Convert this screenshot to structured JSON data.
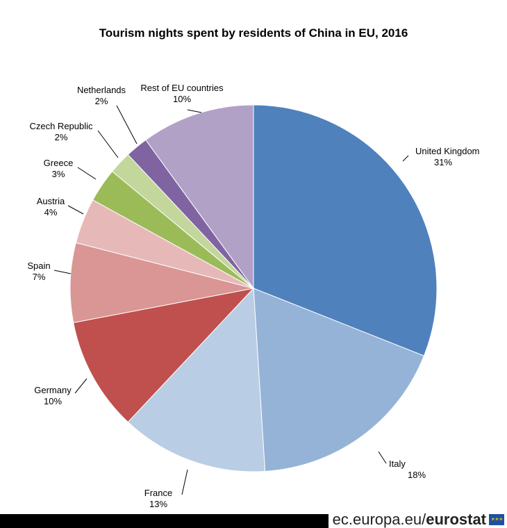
{
  "chart_data": {
    "type": "pie",
    "title": "Tourism nights spent by residents of China in EU, 2016",
    "slices": [
      {
        "label": "United Kingdom",
        "value": 31,
        "value_label": "31%",
        "color": "#4f81bd"
      },
      {
        "label": "Italy",
        "value": 18,
        "value_label": "18%",
        "color": "#95b3d7"
      },
      {
        "label": "France",
        "value": 13,
        "value_label": "13%",
        "color": "#b9cde5"
      },
      {
        "label": "Germany",
        "value": 10,
        "value_label": "10%",
        "color": "#c0504d"
      },
      {
        "label": "Spain",
        "value": 7,
        "value_label": "7%",
        "color": "#d99694"
      },
      {
        "label": "Austria",
        "value": 4,
        "value_label": "4%",
        "color": "#e6b9b8"
      },
      {
        "label": "Greece",
        "value": 3,
        "value_label": "3%",
        "color": "#9bbb59"
      },
      {
        "label": "Czech Republic",
        "value": 2,
        "value_label": "2%",
        "color": "#c3d69b"
      },
      {
        "label": "Netherlands",
        "value": 2,
        "value_label": "2%",
        "color": "#8064a2"
      },
      {
        "label": "Rest of EU countries",
        "value": 10,
        "value_label": "10%",
        "color": "#b2a1c7"
      }
    ]
  },
  "footer": {
    "domain": "ec.europa.eu/",
    "brand": "eurostat"
  }
}
